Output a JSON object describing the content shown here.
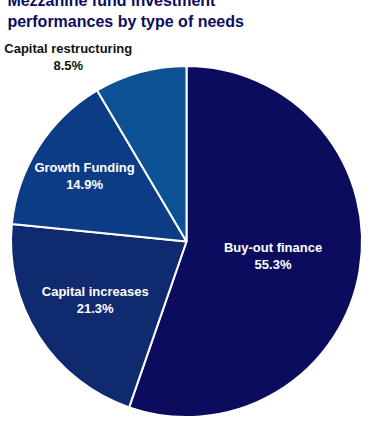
{
  "chart_data": {
    "type": "pie",
    "title": "Mezzanine fund investment\nperformances by type of needs",
    "categories": [
      "Buy-out finance",
      "Capital increases",
      "Growth Funding",
      "Capital restructuring"
    ],
    "values": [
      55.3,
      21.3,
      14.9,
      8.5
    ],
    "value_labels": [
      "55.3%",
      "21.3%",
      "14.9%",
      "8.5%"
    ],
    "colors": [
      "#0b0c5e",
      "#0f2a6e",
      "#0d3c86",
      "#0b5193"
    ],
    "data_labels": true,
    "legend": false
  }
}
